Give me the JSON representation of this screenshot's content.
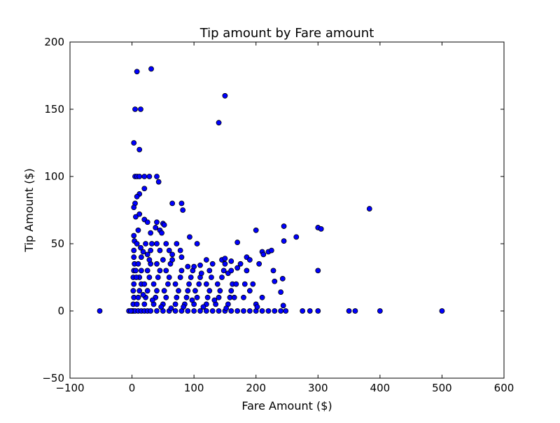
{
  "chart_data": {
    "type": "scatter",
    "title": "Tip amount by Fare amount",
    "xlabel": "Fare Amount ($)",
    "ylabel": "Tip Amount ($)",
    "xlim": [
      -100,
      600
    ],
    "ylim": [
      -50,
      200
    ],
    "xticks": [
      -100,
      0,
      100,
      200,
      300,
      400,
      500,
      600
    ],
    "yticks": [
      -50,
      0,
      50,
      100,
      150,
      200
    ],
    "xtick_labels": [
      "−100",
      "0",
      "100",
      "200",
      "300",
      "400",
      "500",
      "600"
    ],
    "ytick_labels": [
      "−50",
      "0",
      "50",
      "100",
      "150",
      "200"
    ],
    "grid": false,
    "marker_color": "#0000ff",
    "marker_edge": "#000000",
    "points": [
      [
        -52,
        0
      ],
      [
        8,
        178
      ],
      [
        31,
        180
      ],
      [
        5,
        150
      ],
      [
        14,
        150
      ],
      [
        3,
        125
      ],
      [
        12,
        120
      ],
      [
        150,
        160
      ],
      [
        140,
        140
      ],
      [
        383,
        76
      ],
      [
        500,
        0
      ],
      [
        400,
        0
      ],
      [
        360,
        0
      ],
      [
        350,
        0
      ],
      [
        300,
        0
      ],
      [
        287,
        0
      ],
      [
        275,
        0
      ],
      [
        300,
        62
      ],
      [
        305,
        61
      ],
      [
        300,
        30
      ],
      [
        245,
        63
      ],
      [
        265,
        55
      ],
      [
        245,
        52
      ],
      [
        200,
        60
      ],
      [
        5,
        100
      ],
      [
        8,
        100
      ],
      [
        12,
        100
      ],
      [
        20,
        100
      ],
      [
        28,
        100
      ],
      [
        40,
        100
      ],
      [
        43,
        96
      ],
      [
        20,
        91
      ],
      [
        65,
        80
      ],
      [
        80,
        80
      ],
      [
        82,
        75
      ],
      [
        93,
        55
      ],
      [
        105,
        50
      ],
      [
        12,
        87
      ],
      [
        8,
        85
      ],
      [
        5,
        80
      ],
      [
        3,
        77
      ],
      [
        6,
        70
      ],
      [
        12,
        72
      ],
      [
        20,
        68
      ],
      [
        25,
        66
      ],
      [
        40,
        66
      ],
      [
        38,
        62
      ],
      [
        45,
        60
      ],
      [
        50,
        65
      ],
      [
        52,
        64
      ],
      [
        48,
        58
      ],
      [
        10,
        60
      ],
      [
        30,
        58
      ],
      [
        3,
        56
      ],
      [
        4,
        52
      ],
      [
        8,
        50
      ],
      [
        14,
        47
      ],
      [
        22,
        50
      ],
      [
        32,
        50
      ],
      [
        40,
        50
      ],
      [
        55,
        50
      ],
      [
        60,
        45
      ],
      [
        72,
        50
      ],
      [
        78,
        45
      ],
      [
        80,
        40
      ],
      [
        170,
        51
      ],
      [
        185,
        40
      ],
      [
        190,
        38
      ],
      [
        210,
        44
      ],
      [
        212,
        42
      ],
      [
        220,
        44
      ],
      [
        225,
        45
      ],
      [
        228,
        30
      ],
      [
        230,
        22
      ],
      [
        240,
        14
      ],
      [
        243,
        24
      ],
      [
        244,
        4
      ],
      [
        205,
        35
      ],
      [
        210,
        10
      ],
      [
        0,
        0
      ],
      [
        2,
        0
      ],
      [
        5,
        0
      ],
      [
        10,
        0
      ],
      [
        15,
        0
      ],
      [
        20,
        0
      ],
      [
        25,
        0
      ],
      [
        30,
        0
      ],
      [
        40,
        0
      ],
      [
        50,
        0
      ],
      [
        60,
        0
      ],
      [
        70,
        0
      ],
      [
        80,
        0
      ],
      [
        90,
        0
      ],
      [
        100,
        0
      ],
      [
        110,
        0
      ],
      [
        120,
        0
      ],
      [
        130,
        0
      ],
      [
        140,
        0
      ],
      [
        150,
        0
      ],
      [
        160,
        0
      ],
      [
        170,
        0
      ],
      [
        180,
        0
      ],
      [
        190,
        0
      ],
      [
        200,
        0
      ],
      [
        210,
        0
      ],
      [
        220,
        0
      ],
      [
        230,
        0
      ],
      [
        240,
        0
      ],
      [
        248,
        0
      ],
      [
        -5,
        0
      ],
      [
        -2,
        0
      ],
      [
        2,
        5
      ],
      [
        3,
        10
      ],
      [
        2,
        15
      ],
      [
        3,
        20
      ],
      [
        2,
        25
      ],
      [
        3,
        30
      ],
      [
        4,
        35
      ],
      [
        3,
        40
      ],
      [
        3,
        45
      ],
      [
        8,
        5
      ],
      [
        10,
        10
      ],
      [
        12,
        15
      ],
      [
        15,
        20
      ],
      [
        12,
        25
      ],
      [
        15,
        30
      ],
      [
        10,
        35
      ],
      [
        15,
        40
      ],
      [
        20,
        5
      ],
      [
        22,
        10
      ],
      [
        25,
        15
      ],
      [
        20,
        20
      ],
      [
        28,
        25
      ],
      [
        25,
        30
      ],
      [
        30,
        35
      ],
      [
        28,
        38
      ],
      [
        35,
        5
      ],
      [
        38,
        10
      ],
      [
        40,
        15
      ],
      [
        35,
        20
      ],
      [
        42,
        25
      ],
      [
        45,
        30
      ],
      [
        40,
        35
      ],
      [
        50,
        38
      ],
      [
        50,
        5
      ],
      [
        55,
        10
      ],
      [
        52,
        15
      ],
      [
        58,
        20
      ],
      [
        60,
        25
      ],
      [
        55,
        30
      ],
      [
        62,
        35
      ],
      [
        65,
        38
      ],
      [
        70,
        5
      ],
      [
        72,
        10
      ],
      [
        75,
        15
      ],
      [
        70,
        20
      ],
      [
        78,
        25
      ],
      [
        80,
        30
      ],
      [
        85,
        5
      ],
      [
        88,
        10
      ],
      [
        90,
        15
      ],
      [
        92,
        20
      ],
      [
        95,
        25
      ],
      [
        98,
        30
      ],
      [
        100,
        5
      ],
      [
        105,
        10
      ],
      [
        102,
        15
      ],
      [
        108,
        20
      ],
      [
        110,
        25
      ],
      [
        112,
        28
      ],
      [
        120,
        5
      ],
      [
        122,
        10
      ],
      [
        125,
        15
      ],
      [
        120,
        20
      ],
      [
        128,
        25
      ],
      [
        125,
        30
      ],
      [
        130,
        35
      ],
      [
        120,
        38
      ],
      [
        135,
        5
      ],
      [
        140,
        10
      ],
      [
        142,
        15
      ],
      [
        138,
        20
      ],
      [
        145,
        25
      ],
      [
        148,
        30
      ],
      [
        150,
        35
      ],
      [
        145,
        38
      ],
      [
        155,
        5
      ],
      [
        158,
        10
      ],
      [
        160,
        15
      ],
      [
        162,
        20
      ],
      [
        155,
        28
      ],
      [
        160,
        30
      ],
      [
        165,
        10
      ],
      [
        168,
        20
      ],
      [
        170,
        32
      ],
      [
        175,
        35
      ],
      [
        180,
        10
      ],
      [
        182,
        20
      ],
      [
        185,
        30
      ],
      [
        190,
        15
      ],
      [
        195,
        20
      ],
      [
        200,
        5
      ],
      [
        202,
        3
      ],
      [
        65,
        42
      ],
      [
        30,
        45
      ],
      [
        25,
        42
      ],
      [
        18,
        44
      ],
      [
        45,
        45
      ],
      [
        90,
        33
      ],
      [
        100,
        33
      ],
      [
        110,
        34
      ],
      [
        150,
        39
      ],
      [
        160,
        37
      ],
      [
        6,
        30
      ],
      [
        7,
        25
      ],
      [
        18,
        12
      ],
      [
        33,
        8
      ],
      [
        47,
        3
      ],
      [
        63,
        2
      ],
      [
        83,
        3
      ],
      [
        97,
        8
      ],
      [
        115,
        3
      ],
      [
        133,
        8
      ],
      [
        152,
        2
      ]
    ]
  }
}
